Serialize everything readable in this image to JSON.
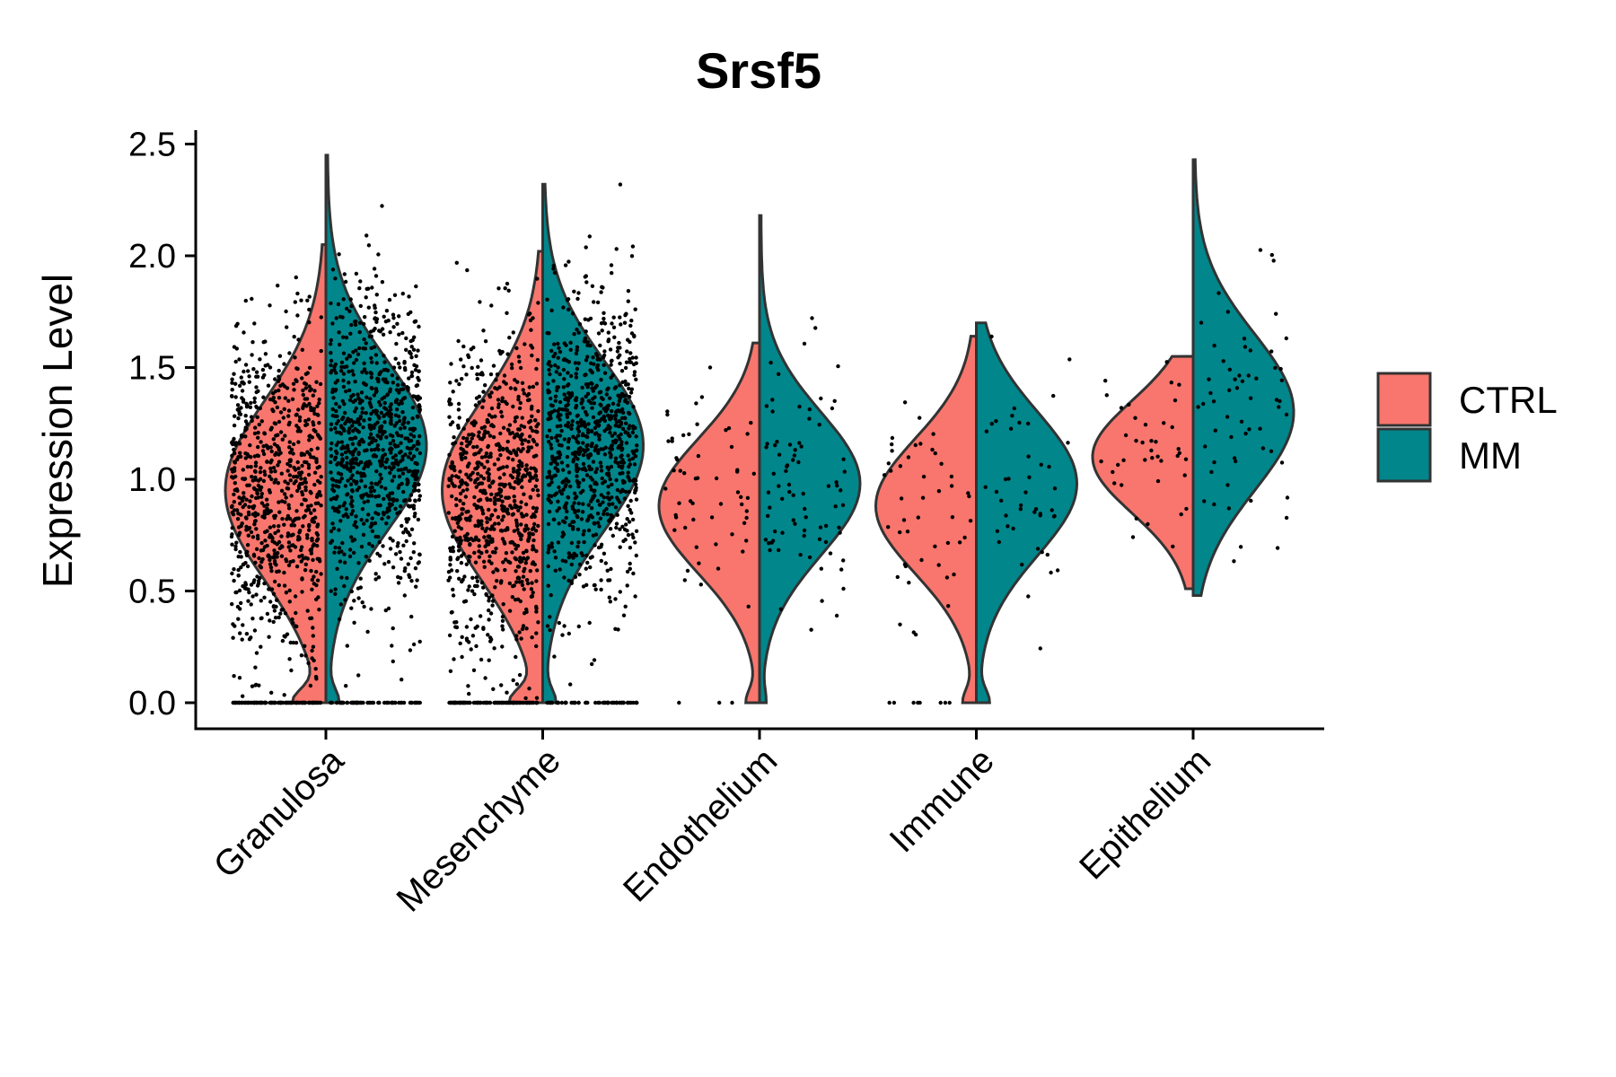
{
  "chart_data": {
    "type": "violin",
    "title": "Srsf5",
    "ylabel": "Expression Level",
    "xlabel": "",
    "ylim": [
      -0.12,
      2.6
    ],
    "yticks": [
      "0.0",
      "0.5",
      "1.0",
      "1.5",
      "2.0",
      "2.5"
    ],
    "categories": [
      "Granulosa",
      "Mesenchyme",
      "Endothelium",
      "Immune",
      "Epithelium"
    ],
    "series": [
      {
        "name": "CTRL",
        "color": "#F8766D"
      },
      {
        "name": "MM",
        "color": "#00868B"
      }
    ],
    "legend_position": "right",
    "grid": false,
    "violins": {
      "Granulosa": {
        "CTRL": {
          "min": 0.0,
          "max": 2.05,
          "peak": 0.95,
          "spread": 0.4,
          "zeroFrac": 0.12,
          "n": 1800
        },
        "MM": {
          "min": 0.0,
          "max": 2.45,
          "peak": 1.15,
          "spread": 0.38,
          "zeroFrac": 0.05,
          "n": 1800
        }
      },
      "Mesenchyme": {
        "CTRL": {
          "min": 0.0,
          "max": 2.02,
          "peak": 0.95,
          "spread": 0.4,
          "zeroFrac": 0.12,
          "n": 1300
        },
        "MM": {
          "min": 0.0,
          "max": 2.32,
          "peak": 1.15,
          "spread": 0.38,
          "zeroFrac": 0.05,
          "n": 1300
        }
      },
      "Endothelium": {
        "CTRL": {
          "min": 0.0,
          "max": 1.61,
          "peak": 0.88,
          "spread": 0.3,
          "zeroFrac": 0.05,
          "n": 60
        },
        "MM": {
          "min": 0.0,
          "max": 2.18,
          "peak": 0.98,
          "spread": 0.32,
          "zeroFrac": 0.02,
          "n": 80
        }
      },
      "Immune": {
        "CTRL": {
          "min": 0.0,
          "max": 1.64,
          "peak": 0.88,
          "spread": 0.3,
          "zeroFrac": 0.05,
          "n": 55
        },
        "MM": {
          "min": 0.0,
          "max": 1.7,
          "peak": 0.98,
          "spread": 0.32,
          "zeroFrac": 0.05,
          "n": 45
        }
      },
      "Epithelium": {
        "CTRL": {
          "min": 0.51,
          "max": 1.55,
          "peak": 1.1,
          "spread": 0.25,
          "zeroFrac": 0.0,
          "n": 40
        },
        "MM": {
          "min": 0.48,
          "max": 2.43,
          "peak": 1.3,
          "spread": 0.35,
          "zeroFrac": 0.0,
          "n": 60
        }
      }
    }
  }
}
